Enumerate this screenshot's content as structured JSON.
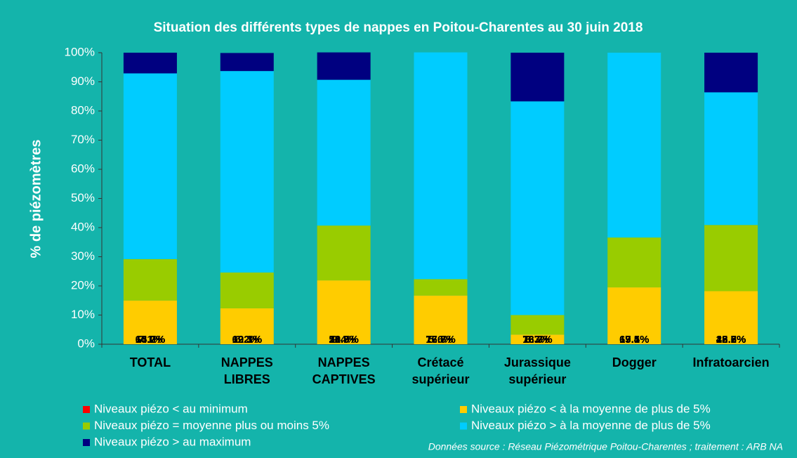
{
  "chart_data": {
    "type": "stacked_bar",
    "title": "Situation des différents types de nappes en Poitou-Charentes au 30 juin 2018",
    "ylabel": "% de piézomètres",
    "source_note": "Données source : Réseau Piézométrique Poitou-Charentes ; traitement : ARB NA",
    "categories": [
      "TOTAL",
      "NAPPES\nLIBRES",
      "NAPPES\nCAPTIVES",
      "Crétacé\nsupérieur",
      "Jurassique\nsupérieur",
      "Dogger",
      "Infratoarcien"
    ],
    "series": [
      {
        "name": "Niveaux piézo < au minimum",
        "color": "#ff0000",
        "values": [
          0,
          0,
          0,
          0,
          0,
          0,
          0
        ]
      },
      {
        "name": "Niveaux piézo < à la moyenne de plus de 5%",
        "color": "#ffcc00",
        "values": [
          15.0,
          12.3,
          21.9,
          16.7,
          3.3,
          19.5,
          18.2
        ],
        "value_labels": [
          "15.0%",
          "12.3%",
          "21.9%",
          "16.7%",
          "3.3%",
          "19.5%",
          "18.2%"
        ]
      },
      {
        "name": "Niveaux piézo = moyenne plus ou moins 5%",
        "color": "#99cc00",
        "values": [
          14.2,
          12.3,
          18.8,
          5.6,
          6.7,
          17.1,
          22.7
        ],
        "value_labels": [
          "14.2%",
          "12.3%",
          "18.8%",
          "5.6%",
          "6.7%",
          "17.1%",
          "22.7%"
        ]
      },
      {
        "name": "Niveaux piézo > à la moyenne de plus de 5%",
        "color": "#00ccff",
        "values": [
          63.7,
          69.1,
          50.0,
          77.8,
          73.3,
          63.4,
          45.5
        ],
        "value_labels": [
          "63.7%",
          "69.1%",
          "50.0%",
          "77.8%",
          "73.3%",
          "63.4%",
          "45.5%"
        ]
      },
      {
        "name": "Niveaux piézo > au maximum",
        "color": "#000080",
        "values": [
          7.1,
          6.2,
          9.4,
          0,
          16.7,
          0,
          13.6
        ],
        "value_labels": [
          "7.1%",
          "6.2%",
          "9.4%",
          null,
          "16.7%",
          null,
          "13.6%"
        ]
      }
    ],
    "ylim": [
      0,
      100
    ],
    "yticks": [
      {
        "value": 0,
        "label": "0%"
      },
      {
        "value": 10,
        "label": "10%"
      },
      {
        "value": 20,
        "label": "20%"
      },
      {
        "value": 30,
        "label": "30%"
      },
      {
        "value": 40,
        "label": "40%"
      },
      {
        "value": 50,
        "label": "50%"
      },
      {
        "value": 60,
        "label": "60%"
      },
      {
        "value": 70,
        "label": "70%"
      },
      {
        "value": 80,
        "label": "80%"
      },
      {
        "value": 90,
        "label": "90%"
      },
      {
        "value": 100,
        "label": "100%"
      }
    ]
  }
}
